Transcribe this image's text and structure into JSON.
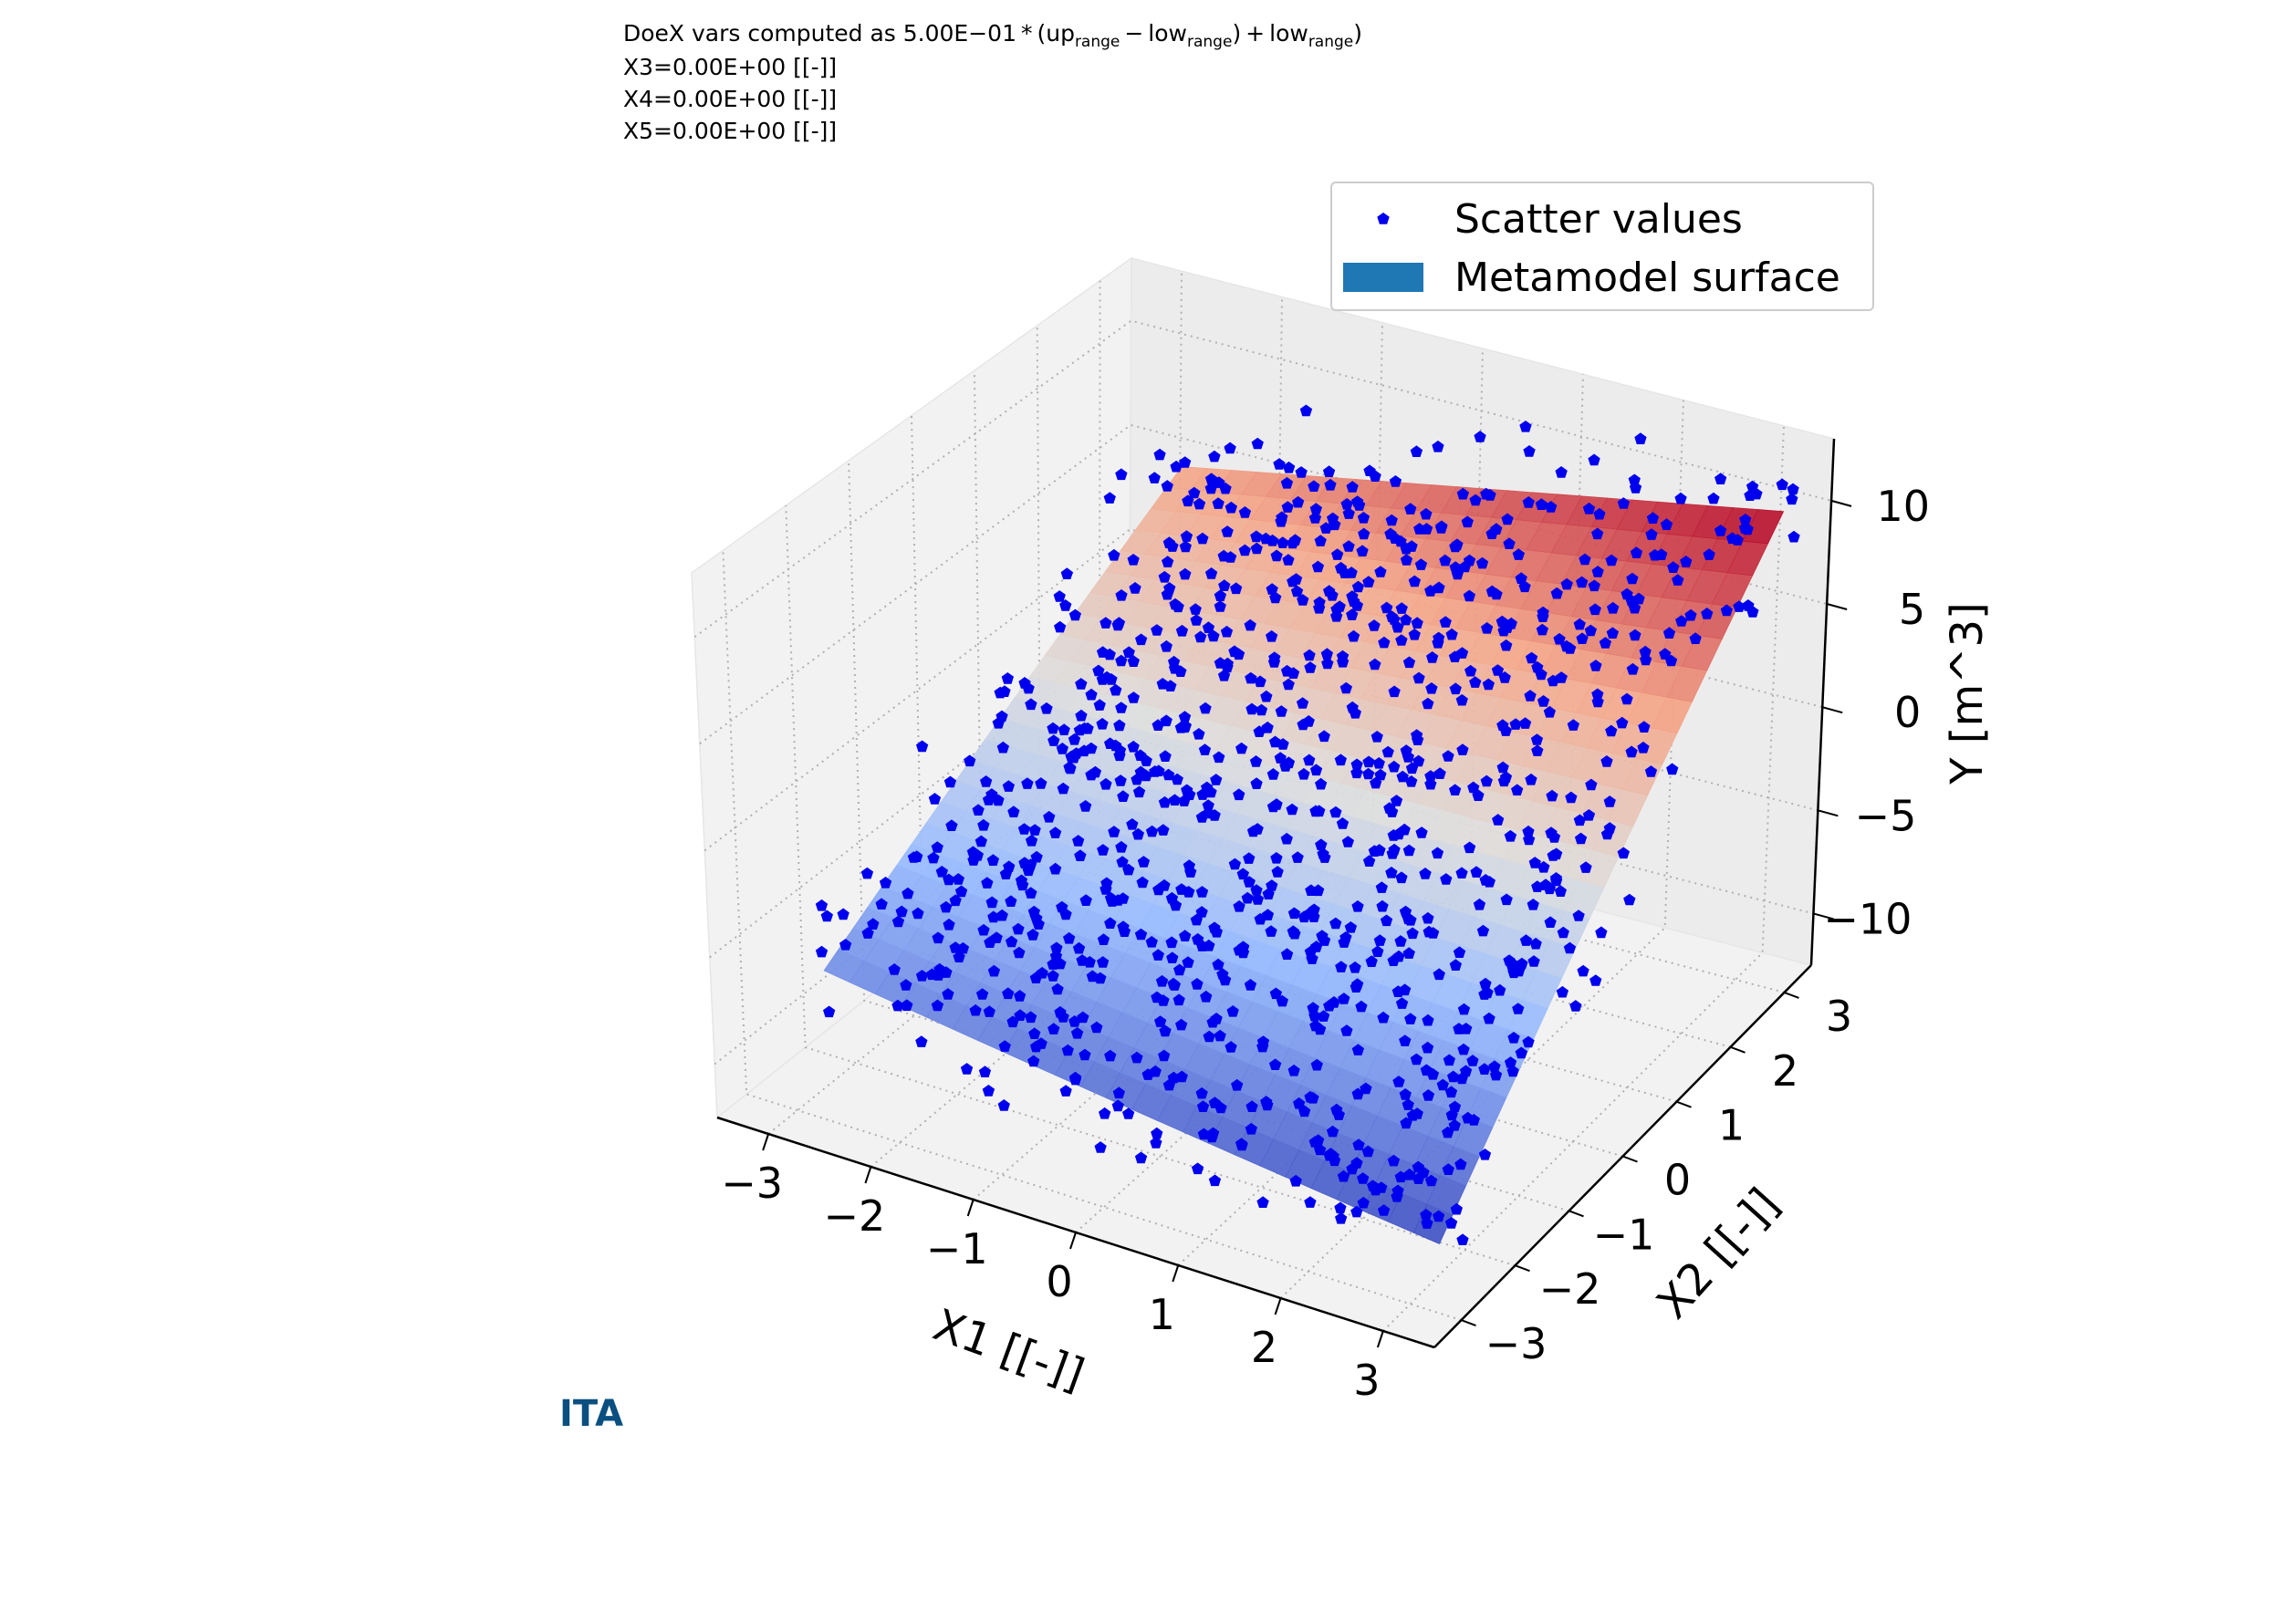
{
  "header": {
    "line1_prefix": "DoeX vars computed as 5.00E−01 * (up",
    "line1_sub1": "range",
    "line1_mid": " − low",
    "line1_sub2": "range",
    "line1_mid2": ") + low",
    "line1_sub3": "range",
    "line1_end": ")",
    "line2": "X3=0.00E+00 [[-]]",
    "line3": "X4=0.00E+00 [[-]]",
    "line4": "X5=0.00E+00 [[-]]"
  },
  "logo_text": "ITA",
  "colors": {
    "marker": "#0000ee",
    "surface_low": "#3b4cc0",
    "surface_mid": "#dddddd",
    "surface_high": "#b40426",
    "legend_patch": "#1f77b4",
    "pane_color": "#f2f2f2",
    "grid_color": "#b0b0b0"
  },
  "chart_data": {
    "type": "scatter",
    "subtype": "3d-scatter-with-surface",
    "xlabel": "X1 [[-]]",
    "ylabel": "X2 [[-]]",
    "zlabel": "Y [m^3]",
    "xlim": [
      -3.5,
      3.5
    ],
    "ylim": [
      -3.5,
      3.5
    ],
    "zlim": [
      -12.5,
      13
    ],
    "xticks": [
      -3,
      -2,
      -1,
      0,
      1,
      2,
      3
    ],
    "yticks": [
      -3,
      -2,
      -1,
      0,
      1,
      2,
      3
    ],
    "zticks": [
      -10,
      -5,
      0,
      5,
      10
    ],
    "xtick_labels": [
      "−3",
      "−2",
      "−1",
      "0",
      "1",
      "2",
      "3"
    ],
    "ytick_labels": [
      "−3",
      "−2",
      "−1",
      "0",
      "1",
      "2",
      "3"
    ],
    "ztick_labels": [
      "−10",
      "−5",
      "0",
      "5",
      "10"
    ],
    "grid": true,
    "legend_position": "top-right",
    "series": [
      {
        "name": "Scatter values",
        "kind": "scatter",
        "marker": "pentagon",
        "color": "#0000ee",
        "point_count": 1000
      },
      {
        "name": "Metamodel surface",
        "kind": "surface",
        "colormap": "coolwarm",
        "x_range": [
          -2.8,
          3.2
        ],
        "y_range": [
          -2.8,
          3.2
        ],
        "z_range": [
          -9.5,
          10
        ]
      }
    ]
  }
}
